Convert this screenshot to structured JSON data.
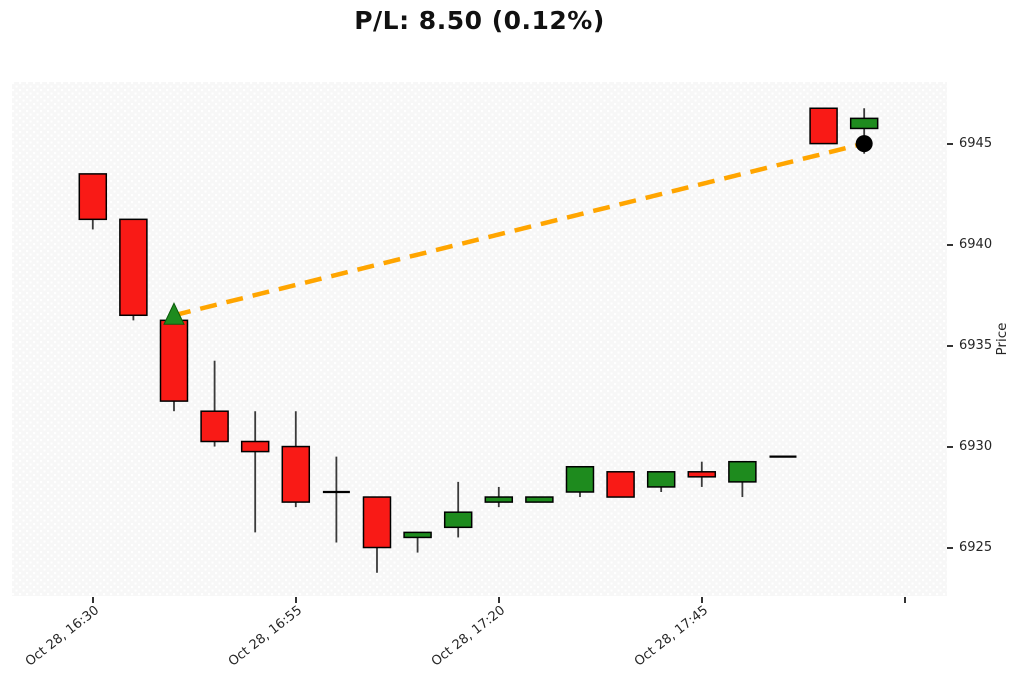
{
  "title": "P/L: 8.50 (0.12%)",
  "chart_data": {
    "type": "candlestick",
    "date": "Oct 28",
    "interval_minutes": 5,
    "ylabel": "Price",
    "ylim": [
      6922.6,
      6948.05
    ],
    "xlim": [
      -1.99,
      21.04
    ],
    "grid": false,
    "y_ticks": [
      6945,
      6940,
      6935,
      6930,
      6925
    ],
    "x_ticks": [
      {
        "index": 0,
        "label": "Oct 28, 16:30"
      },
      {
        "index": 5,
        "label": "Oct 28, 16:55"
      },
      {
        "index": 10,
        "label": "Oct 28, 17:20"
      },
      {
        "index": 15,
        "label": "Oct 28, 17:45"
      },
      {
        "index": 20,
        "label": ""
      }
    ],
    "candles": [
      {
        "time": "16:30",
        "open": 6943.5,
        "high": 6943.5,
        "low": 6940.75,
        "close": 6941.25
      },
      {
        "time": "16:35",
        "open": 6941.25,
        "high": 6941.25,
        "low": 6936.25,
        "close": 6936.5
      },
      {
        "time": "16:40",
        "open": 6936.25,
        "high": 6936.25,
        "low": 6931.75,
        "close": 6932.25
      },
      {
        "time": "16:45",
        "open": 6931.75,
        "high": 6934.25,
        "low": 6930.0,
        "close": 6930.25
      },
      {
        "time": "16:50",
        "open": 6930.25,
        "high": 6931.75,
        "low": 6925.75,
        "close": 6929.75
      },
      {
        "time": "16:55",
        "open": 6930.0,
        "high": 6931.75,
        "low": 6927.0,
        "close": 6927.25
      },
      {
        "time": "17:00",
        "open": 6927.75,
        "high": 6929.5,
        "low": 6925.25,
        "close": 6927.75
      },
      {
        "time": "17:05",
        "open": 6927.5,
        "high": 6927.5,
        "low": 6923.75,
        "close": 6925.0
      },
      {
        "time": "17:10",
        "open": 6925.5,
        "high": 6925.75,
        "low": 6924.75,
        "close": 6925.75
      },
      {
        "time": "17:15",
        "open": 6926.0,
        "high": 6928.25,
        "low": 6925.5,
        "close": 6926.75
      },
      {
        "time": "17:20",
        "open": 6927.25,
        "high": 6928.0,
        "low": 6927.0,
        "close": 6927.5
      },
      {
        "time": "17:25",
        "open": 6927.25,
        "high": 6927.5,
        "low": 6927.25,
        "close": 6927.5
      },
      {
        "time": "17:30",
        "open": 6927.75,
        "high": 6929.0,
        "low": 6927.5,
        "close": 6929.0
      },
      {
        "time": "17:35",
        "open": 6928.75,
        "high": 6928.75,
        "low": 6927.5,
        "close": 6927.5
      },
      {
        "time": "17:40",
        "open": 6928.0,
        "high": 6928.75,
        "low": 6927.75,
        "close": 6928.75
      },
      {
        "time": "17:45",
        "open": 6928.75,
        "high": 6929.25,
        "low": 6928.0,
        "close": 6928.5
      },
      {
        "time": "17:50",
        "open": 6928.25,
        "high": 6929.25,
        "low": 6927.5,
        "close": 6929.25
      },
      {
        "time": "17:55",
        "open": 6929.5,
        "high": 6929.5,
        "low": 6929.5,
        "close": 6929.5
      },
      {
        "time": "18:00",
        "open": 6946.75,
        "high": 6946.75,
        "low": 6945.0,
        "close": 6945.0
      },
      {
        "time": "18:05",
        "open": 6945.75,
        "high": 6946.75,
        "low": 6944.5,
        "close": 6946.25
      }
    ],
    "trade": {
      "entry": {
        "candle_index": 2,
        "price": 6936.5,
        "marker": "triangle-up"
      },
      "exit": {
        "candle_index": 19,
        "price": 6945.0,
        "marker": "circle"
      }
    },
    "colors": {
      "up": "#1E8B1E",
      "down": "#F91A16",
      "flat": "#000000",
      "body_edge": "#000000",
      "wick": "#3A3A3A",
      "trade_line": "#FFA500",
      "entry_marker": "#1E8B1E",
      "entry_marker_edge": "#0B5A0B",
      "exit_marker": "#000000",
      "plot_bg": "#F7F7F7",
      "tick_text": "#262626"
    }
  }
}
